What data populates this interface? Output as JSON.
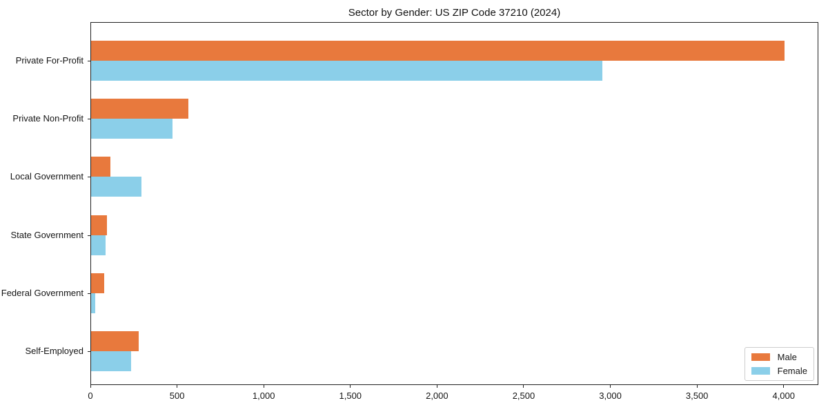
{
  "title": "Sector by Gender: US ZIP Code 37210 (2024)",
  "colors": {
    "male": "#e8793d",
    "female": "#8bcfe9",
    "axis": "#1f1f1f",
    "legend_border": "#cccccc"
  },
  "legend": {
    "entries": [
      {
        "label": "Male",
        "color": "#e8793d"
      },
      {
        "label": "Female",
        "color": "#8bcfe9"
      }
    ]
  },
  "chart_data": {
    "type": "bar",
    "orientation": "horizontal",
    "title": "Sector by Gender: US ZIP Code 37210 (2024)",
    "categories": [
      "Private For-Profit",
      "Private Non-Profit",
      "Local Government",
      "State Government",
      "Federal Government",
      "Self-Employed"
    ],
    "series": [
      {
        "name": "Male",
        "color": "#e8793d",
        "values": [
          4000,
          560,
          110,
          90,
          75,
          275
        ]
      },
      {
        "name": "Female",
        "color": "#8bcfe9",
        "values": [
          2950,
          470,
          290,
          85,
          25,
          230
        ]
      }
    ],
    "xlabel": "",
    "ylabel": "",
    "xlim": [
      0,
      4200
    ],
    "xticks": [
      0,
      500,
      1000,
      1500,
      2000,
      2500,
      3000,
      3500,
      4000
    ],
    "xtick_labels": [
      "0",
      "500",
      "1,000",
      "1,500",
      "2,000",
      "2,500",
      "3,000",
      "3,500",
      "4,000"
    ],
    "grid": false,
    "legend_position": "lower right"
  }
}
